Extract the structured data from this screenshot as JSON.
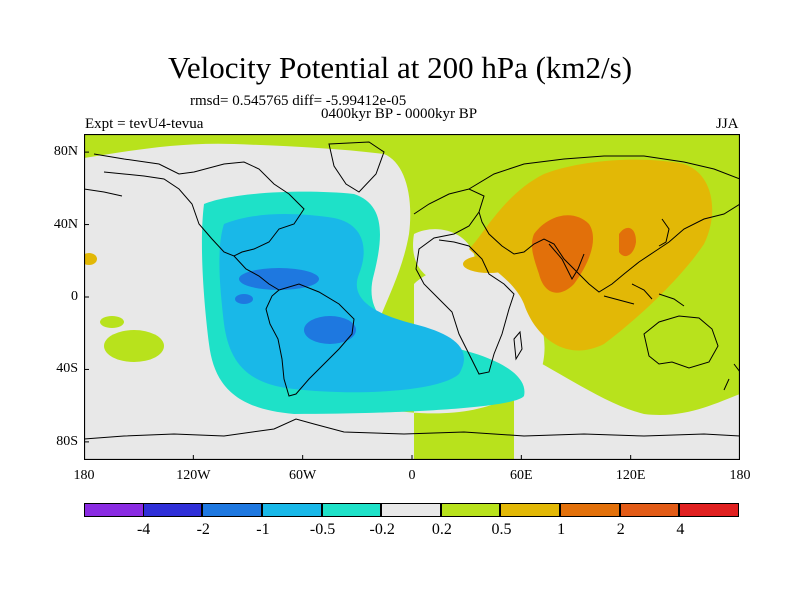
{
  "title": "Velocity Potential at 200 hPa (km2/s)",
  "stats": "rmsd= 0.545765 diff= -5.99412e-05",
  "period": "0400kyr BP - 0000kyr BP",
  "experiment": "Expt = tevU4-tevua",
  "season": "JJA",
  "map": {
    "projection": "cylindrical equidistant",
    "lon_range": [
      -180,
      180
    ],
    "lat_range": [
      -90,
      90
    ],
    "x_ticks": [
      "180",
      "120W",
      "60W",
      "0",
      "60E",
      "120E",
      "180"
    ],
    "y_ticks": [
      "80N",
      "40N",
      "0",
      "40S",
      "80S"
    ]
  },
  "colorbar": {
    "labels": [
      "-4",
      "-2",
      "-1",
      "-0.5",
      "-0.2",
      "0.2",
      "0.5",
      "1",
      "2",
      "4"
    ],
    "colors": [
      "#8a2be2",
      "#2f2fd8",
      "#1e78e0",
      "#19b8e8",
      "#1ee1c8",
      "#e8e8e8",
      "#b8e21c",
      "#e2b806",
      "#e2700a",
      "#e25b16",
      "#e02020"
    ]
  }
}
